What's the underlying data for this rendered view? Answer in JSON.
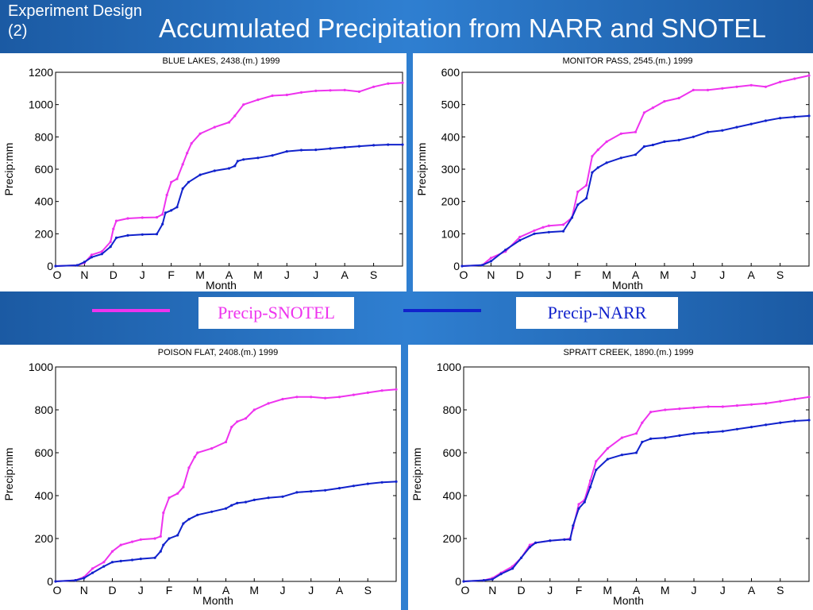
{
  "slide": {
    "label": "Experiment Design (2)",
    "title": "Accumulated Precipitation from NARR and SNOTEL"
  },
  "colors": {
    "snotel": "#ee33ee",
    "narr": "#1122cc",
    "bg": "#1d5fa8"
  },
  "legend": {
    "snotel": "Precip-SNOTEL",
    "narr": "Precip-NARR"
  },
  "chart_data": [
    {
      "type": "line",
      "title": "BLUE LAKES,   2438.(m.)  1999",
      "xlabel": "Month",
      "ylabel": "Precip:mm",
      "categories": [
        "O",
        "N",
        "D",
        "J",
        "F",
        "M",
        "A",
        "M",
        "J",
        "J",
        "A",
        "S"
      ],
      "xlim": [
        0,
        12
      ],
      "ylim": [
        0,
        1200
      ],
      "yticks": [
        0,
        200,
        400,
        600,
        800,
        1000,
        1200
      ],
      "series": [
        {
          "name": "Precip-SNOTEL",
          "x": [
            0,
            0.75,
            1.0,
            1.25,
            1.6,
            1.9,
            2.0,
            2.1,
            2.5,
            3.0,
            3.5,
            3.7,
            3.85,
            4.0,
            4.2,
            4.4,
            4.55,
            4.7,
            5.0,
            5.5,
            6.0,
            6.2,
            6.5,
            7.0,
            7.5,
            8.0,
            8.5,
            9.0,
            9.5,
            10.0,
            10.5,
            11.0,
            11.5,
            12.0
          ],
          "y": [
            0,
            5,
            20,
            70,
            90,
            150,
            230,
            280,
            295,
            300,
            302,
            320,
            440,
            520,
            540,
            630,
            700,
            760,
            820,
            860,
            890,
            930,
            1000,
            1030,
            1055,
            1060,
            1075,
            1085,
            1088,
            1090,
            1080,
            1110,
            1130,
            1135
          ]
        },
        {
          "name": "Precip-NARR",
          "x": [
            0,
            0.75,
            1.0,
            1.25,
            1.6,
            1.9,
            2.1,
            2.5,
            3.0,
            3.5,
            3.7,
            3.8,
            4.0,
            4.2,
            4.4,
            4.6,
            5.0,
            5.5,
            6.0,
            6.2,
            6.3,
            6.5,
            7.0,
            7.5,
            8.0,
            8.5,
            9.0,
            9.5,
            10.0,
            10.5,
            11.0,
            11.5,
            12.0
          ],
          "y": [
            0,
            5,
            25,
            55,
            75,
            120,
            175,
            190,
            195,
            198,
            260,
            330,
            345,
            365,
            480,
            520,
            565,
            590,
            605,
            620,
            650,
            660,
            670,
            685,
            710,
            718,
            720,
            728,
            735,
            742,
            748,
            752,
            752
          ]
        }
      ]
    },
    {
      "type": "line",
      "title": "MONITOR PASS,   2545.(m.)  1999",
      "xlabel": "Month",
      "ylabel": "Precip:mm",
      "categories": [
        "O",
        "N",
        "D",
        "J",
        "F",
        "M",
        "A",
        "M",
        "J",
        "J",
        "A",
        "S"
      ],
      "xlim": [
        0,
        12
      ],
      "ylim": [
        0,
        600
      ],
      "yticks": [
        0,
        100,
        200,
        300,
        400,
        500,
        600
      ],
      "series": [
        {
          "name": "Precip-SNOTEL",
          "x": [
            0,
            0.7,
            1.0,
            1.5,
            2.0,
            2.5,
            2.8,
            3.0,
            3.5,
            3.8,
            4.0,
            4.3,
            4.5,
            4.7,
            5.0,
            5.5,
            6.0,
            6.3,
            6.6,
            7.0,
            7.5,
            8.0,
            8.5,
            9.0,
            9.5,
            10.0,
            10.5,
            11.0,
            11.5,
            12.0
          ],
          "y": [
            0,
            3,
            25,
            45,
            90,
            110,
            120,
            125,
            128,
            150,
            230,
            250,
            340,
            360,
            385,
            410,
            415,
            475,
            490,
            510,
            520,
            545,
            545,
            550,
            555,
            560,
            555,
            570,
            580,
            590
          ]
        },
        {
          "name": "Precip-NARR",
          "x": [
            0,
            0.7,
            1.0,
            1.5,
            2.0,
            2.5,
            3.0,
            3.5,
            3.8,
            4.0,
            4.3,
            4.5,
            4.7,
            5.0,
            5.5,
            6.0,
            6.3,
            6.6,
            7.0,
            7.5,
            8.0,
            8.5,
            9.0,
            9.5,
            10.0,
            10.5,
            11.0,
            11.5,
            12.0
          ],
          "y": [
            0,
            3,
            15,
            50,
            80,
            100,
            105,
            108,
            150,
            190,
            210,
            290,
            305,
            320,
            335,
            345,
            370,
            375,
            385,
            390,
            400,
            415,
            420,
            430,
            440,
            450,
            458,
            462,
            465
          ]
        }
      ]
    },
    {
      "type": "line",
      "title": "POISON FLAT,   2408.(m.)  1999",
      "xlabel": "Month",
      "ylabel": "Precip:mm",
      "categories": [
        "O",
        "N",
        "D",
        "J",
        "F",
        "M",
        "A",
        "M",
        "J",
        "J",
        "A",
        "S"
      ],
      "xlim": [
        0,
        12
      ],
      "ylim": [
        0,
        1000
      ],
      "yticks": [
        0,
        200,
        400,
        600,
        800,
        1000
      ],
      "series": [
        {
          "name": "Precip-SNOTEL",
          "x": [
            0,
            0.7,
            1.0,
            1.3,
            1.7,
            2.0,
            2.3,
            2.7,
            3.0,
            3.5,
            3.7,
            3.8,
            4.0,
            4.3,
            4.5,
            4.7,
            4.9,
            5.0,
            5.5,
            6.0,
            6.2,
            6.4,
            6.7,
            7.0,
            7.5,
            8.0,
            8.5,
            9.0,
            9.5,
            10.0,
            10.5,
            11.0,
            11.5,
            12.0
          ],
          "y": [
            0,
            5,
            20,
            60,
            90,
            140,
            170,
            185,
            195,
            200,
            210,
            320,
            390,
            410,
            440,
            530,
            580,
            600,
            620,
            650,
            720,
            745,
            760,
            800,
            830,
            850,
            860,
            860,
            855,
            860,
            870,
            880,
            890,
            895
          ]
        },
        {
          "name": "Precip-NARR",
          "x": [
            0,
            0.7,
            1.0,
            1.3,
            1.7,
            2.0,
            2.3,
            2.7,
            3.0,
            3.5,
            3.7,
            3.8,
            4.0,
            4.3,
            4.5,
            4.7,
            5.0,
            5.5,
            6.0,
            6.2,
            6.4,
            6.7,
            7.0,
            7.5,
            8.0,
            8.5,
            9.0,
            9.5,
            10.0,
            10.5,
            11.0,
            11.5,
            12.0
          ],
          "y": [
            0,
            5,
            15,
            40,
            70,
            90,
            95,
            100,
            105,
            110,
            140,
            170,
            200,
            215,
            270,
            290,
            310,
            325,
            340,
            355,
            365,
            370,
            380,
            390,
            395,
            415,
            420,
            425,
            435,
            445,
            455,
            462,
            465
          ]
        }
      ]
    },
    {
      "type": "line",
      "title": "SPRATT CREEK,   1890.(m.)  1999",
      "xlabel": "Month",
      "ylabel": "Precip:mm",
      "categories": [
        "O",
        "N",
        "D",
        "J",
        "F",
        "M",
        "A",
        "M",
        "J",
        "J",
        "A",
        "S"
      ],
      "xlim": [
        0,
        12
      ],
      "ylim": [
        0,
        1000
      ],
      "yticks": [
        0,
        200,
        400,
        600,
        800,
        1000
      ],
      "series": [
        {
          "name": "Precip-SNOTEL",
          "x": [
            0,
            0.7,
            1.0,
            1.3,
            1.7,
            2.0,
            2.3,
            2.5,
            3.0,
            3.5,
            3.7,
            3.8,
            4.0,
            4.2,
            4.4,
            4.6,
            5.0,
            5.5,
            6.0,
            6.2,
            6.5,
            7.0,
            7.5,
            8.0,
            8.5,
            9.0,
            9.5,
            10.0,
            10.5,
            11.0,
            11.5,
            12.0
          ],
          "y": [
            0,
            5,
            15,
            40,
            70,
            110,
            170,
            180,
            190,
            195,
            200,
            250,
            360,
            380,
            470,
            560,
            620,
            670,
            690,
            740,
            790,
            800,
            805,
            810,
            815,
            815,
            820,
            825,
            830,
            840,
            850,
            860
          ]
        },
        {
          "name": "Precip-NARR",
          "x": [
            0,
            0.7,
            1.0,
            1.3,
            1.7,
            2.0,
            2.3,
            2.5,
            3.0,
            3.5,
            3.7,
            3.8,
            4.0,
            4.2,
            4.4,
            4.6,
            5.0,
            5.5,
            6.0,
            6.2,
            6.5,
            7.0,
            7.5,
            8.0,
            8.5,
            9.0,
            9.5,
            10.0,
            10.5,
            11.0,
            11.5,
            12.0
          ],
          "y": [
            0,
            5,
            10,
            35,
            60,
            110,
            160,
            180,
            190,
            195,
            195,
            260,
            340,
            370,
            440,
            520,
            570,
            590,
            600,
            650,
            665,
            670,
            680,
            690,
            695,
            700,
            710,
            720,
            730,
            740,
            748,
            752
          ]
        }
      ]
    }
  ]
}
